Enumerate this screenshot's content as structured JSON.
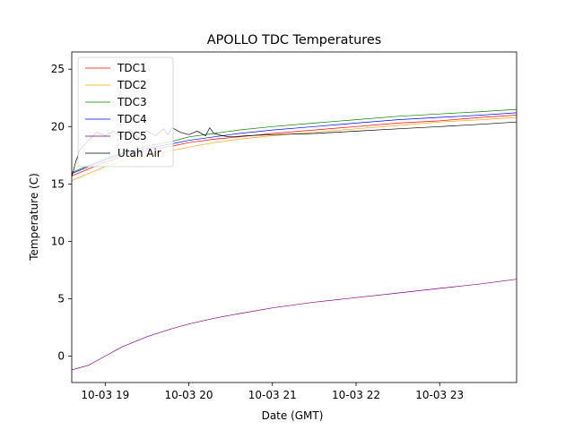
{
  "chart_data": {
    "type": "line",
    "title": "APOLLO TDC Temperatures",
    "xlabel": "Date (GMT)",
    "ylabel": "Temperature (C)",
    "xlim": [
      18.6,
      23.92
    ],
    "ylim": [
      -2.3,
      26.5
    ],
    "x_ticks": [
      {
        "value": 19,
        "label": "10-03 19"
      },
      {
        "value": 20,
        "label": "10-03 20"
      },
      {
        "value": 21,
        "label": "10-03 21"
      },
      {
        "value": 22,
        "label": "10-03 22"
      },
      {
        "value": 23,
        "label": "10-03 23"
      }
    ],
    "y_ticks": [
      {
        "value": 0,
        "label": "0"
      },
      {
        "value": 5,
        "label": "5"
      },
      {
        "value": 10,
        "label": "10"
      },
      {
        "value": 15,
        "label": "15"
      },
      {
        "value": 20,
        "label": "20"
      },
      {
        "value": 25,
        "label": "25"
      }
    ],
    "grid": false,
    "legend_position": "top-left",
    "series": [
      {
        "name": "TDC1",
        "color": "#ff0000",
        "x": [
          18.6,
          18.8,
          19.0,
          19.2,
          19.5,
          19.8,
          20.0,
          20.3,
          20.6,
          21.0,
          21.5,
          22.0,
          22.5,
          23.0,
          23.5,
          23.92
        ],
        "y": [
          15.7,
          16.3,
          16.9,
          17.4,
          17.9,
          18.3,
          18.6,
          18.9,
          19.1,
          19.4,
          19.7,
          20.0,
          20.3,
          20.5,
          20.8,
          21.0
        ]
      },
      {
        "name": "TDC2",
        "color": "#ffa500",
        "x": [
          18.6,
          18.8,
          19.0,
          19.2,
          19.5,
          19.8,
          20.0,
          20.3,
          20.6,
          21.0,
          21.5,
          22.0,
          22.5,
          23.0,
          23.5,
          23.92
        ],
        "y": [
          15.3,
          15.9,
          16.5,
          17.0,
          17.5,
          17.9,
          18.2,
          18.6,
          18.9,
          19.2,
          19.5,
          19.8,
          20.1,
          20.4,
          20.6,
          20.8
        ]
      },
      {
        "name": "TDC3",
        "color": "#008000",
        "x": [
          18.6,
          18.8,
          19.0,
          19.2,
          19.5,
          19.8,
          20.0,
          20.3,
          20.6,
          21.0,
          21.5,
          22.0,
          22.5,
          23.0,
          23.5,
          23.92
        ],
        "y": [
          16.0,
          16.6,
          17.2,
          17.7,
          18.3,
          18.7,
          19.1,
          19.4,
          19.7,
          20.0,
          20.3,
          20.6,
          20.9,
          21.1,
          21.3,
          21.5
        ]
      },
      {
        "name": "TDC4",
        "color": "#0000ff",
        "x": [
          18.6,
          18.8,
          19.0,
          19.2,
          19.5,
          19.8,
          20.0,
          20.3,
          20.6,
          21.0,
          21.5,
          22.0,
          22.5,
          23.0,
          23.5,
          23.92
        ],
        "y": [
          15.9,
          16.5,
          17.1,
          17.6,
          18.1,
          18.5,
          18.8,
          19.1,
          19.4,
          19.7,
          20.0,
          20.3,
          20.6,
          20.8,
          21.0,
          21.2
        ]
      },
      {
        "name": "TDC5",
        "color": "#800080",
        "x": [
          18.6,
          18.8,
          19.0,
          19.2,
          19.5,
          19.8,
          20.0,
          20.3,
          20.6,
          21.0,
          21.5,
          22.0,
          22.5,
          23.0,
          23.5,
          23.92
        ],
        "y": [
          -1.2,
          -0.8,
          0.0,
          0.8,
          1.7,
          2.4,
          2.8,
          3.3,
          3.7,
          4.2,
          4.7,
          5.1,
          5.5,
          5.9,
          6.3,
          6.7
        ]
      },
      {
        "name": "Utah Air",
        "color": "#000000",
        "x": [
          18.6,
          18.65,
          18.7,
          18.8,
          18.9,
          19.0,
          19.1,
          19.2,
          19.3,
          19.4,
          19.5,
          19.6,
          19.7,
          19.75,
          19.8,
          19.9,
          20.0,
          20.1,
          20.2,
          20.25,
          20.3,
          20.35,
          20.4,
          20.5,
          20.7,
          21.0,
          21.5,
          22.0,
          22.5,
          23.0,
          23.5,
          23.92
        ],
        "y": [
          15.6,
          17.0,
          18.0,
          18.8,
          19.5,
          19.2,
          19.6,
          19.1,
          19.7,
          19.0,
          19.6,
          19.2,
          19.8,
          19.3,
          19.9,
          19.5,
          19.3,
          19.6,
          19.2,
          19.9,
          19.4,
          19.3,
          19.2,
          19.1,
          19.2,
          19.3,
          19.4,
          19.6,
          19.8,
          20.0,
          20.2,
          20.4
        ]
      }
    ]
  }
}
